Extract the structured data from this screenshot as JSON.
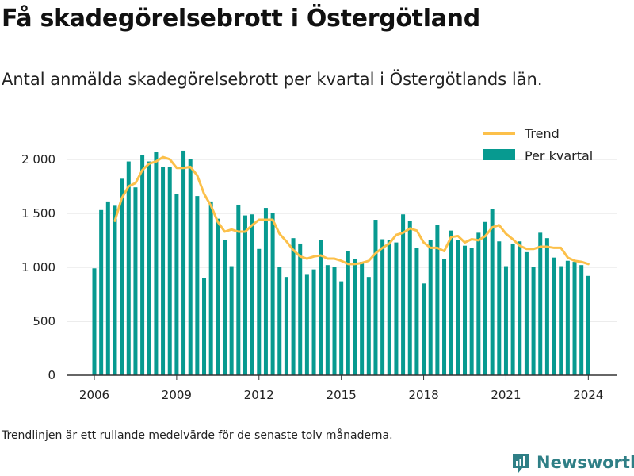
{
  "title": "Få skadegörelsebrott i Östergötland",
  "subtitle": "Antal anmälda skadegörelsebrott per kvartal i Östergötlands län.",
  "note": "Trendlinjen är ett rullande medelvärde för de senaste tolv månaderna.",
  "brand": "Newsworthy",
  "colors": {
    "bar": "#079a90",
    "trend": "#fcc04a",
    "grid": "#d9d9d9",
    "brand": "#2f7f86"
  },
  "chart_data": {
    "type": "bar",
    "title": "",
    "xlabel": "",
    "ylabel": "",
    "ylim": [
      0,
      2300
    ],
    "yticks": [
      {
        "value": 0,
        "label": "0"
      },
      {
        "value": 500,
        "label": "500"
      },
      {
        "value": 1000,
        "label": "1 000"
      },
      {
        "value": 1500,
        "label": "1 500"
      },
      {
        "value": 2000,
        "label": "2 000"
      }
    ],
    "xticks": [
      {
        "value": 2006,
        "label": "2006"
      },
      {
        "value": 2009,
        "label": "2009"
      },
      {
        "value": 2012,
        "label": "2012"
      },
      {
        "value": 2015,
        "label": "2015"
      },
      {
        "value": 2018,
        "label": "2018"
      },
      {
        "value": 2021,
        "label": "2021"
      },
      {
        "value": 2024,
        "label": "2024"
      }
    ],
    "start_year": 2006,
    "legend_position": "top-right",
    "series": [
      {
        "name": "Per kvartal",
        "type": "bar",
        "values": [
          990,
          1530,
          1610,
          1570,
          1820,
          1980,
          1740,
          2040,
          1980,
          2070,
          1930,
          1930,
          1680,
          2080,
          2000,
          1660,
          900,
          1610,
          1450,
          1250,
          1010,
          1580,
          1480,
          1490,
          1170,
          1550,
          1500,
          1000,
          910,
          1270,
          1220,
          930,
          980,
          1250,
          1020,
          1000,
          870,
          1150,
          1080,
          1050,
          910,
          1440,
          1260,
          1250,
          1230,
          1490,
          1430,
          1180,
          850,
          1250,
          1390,
          1080,
          1340,
          1250,
          1200,
          1180,
          1320,
          1420,
          1540,
          1240,
          1010,
          1220,
          1240,
          1140,
          1000,
          1320,
          1270,
          1090,
          1010,
          1060,
          1050,
          1020,
          920
        ]
      },
      {
        "name": "Trend",
        "type": "line",
        "values": [
          null,
          null,
          null,
          1430,
          1640,
          1750,
          1780,
          1900,
          1960,
          1980,
          2020,
          2000,
          1920,
          1920,
          1930,
          1850,
          1680,
          1570,
          1420,
          1330,
          1350,
          1330,
          1330,
          1390,
          1440,
          1440,
          1440,
          1310,
          1240,
          1160,
          1100,
          1080,
          1100,
          1110,
          1080,
          1080,
          1060,
          1030,
          1030,
          1040,
          1060,
          1130,
          1180,
          1220,
          1300,
          1320,
          1360,
          1340,
          1230,
          1180,
          1180,
          1150,
          1280,
          1290,
          1230,
          1260,
          1250,
          1290,
          1370,
          1390,
          1310,
          1260,
          1200,
          1170,
          1170,
          1190,
          1190,
          1180,
          1180,
          1090,
          1060,
          1050,
          1030
        ]
      }
    ]
  }
}
